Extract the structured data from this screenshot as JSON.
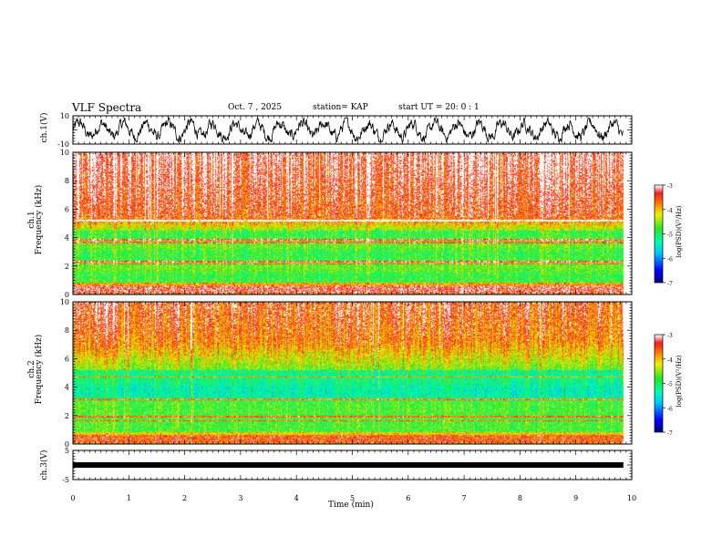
{
  "header": {
    "title": "VLF Spectra",
    "date": "Oct. 7 , 2025",
    "station": "station= KAP",
    "start": "start  UT =   20: 0  : 1"
  },
  "chart_data": [
    {
      "type": "line",
      "name": "ch1-waveform",
      "ylabel": "ch.1(V)",
      "ylim": [
        -10,
        10
      ],
      "y_ticks": [
        "10",
        "-10"
      ],
      "x_range_min": [
        0,
        9.85
      ]
    },
    {
      "type": "heatmap",
      "name": "ch1-spectrogram",
      "ylabel_line1": "ch.1",
      "ylabel_line2": "Frequency (kHz)",
      "ylim": [
        0,
        10
      ],
      "y_ticks": [
        "0",
        "2",
        "4",
        "6",
        "8",
        "10"
      ],
      "x_range_min": [
        0,
        9.85
      ],
      "colorbar": {
        "label": "log(PSD)(V²/Hz)",
        "range": [
          -7,
          -3
        ],
        "ticks": [
          "-3",
          "-4",
          "-5",
          "-6",
          "-7"
        ]
      }
    },
    {
      "type": "heatmap",
      "name": "ch2-spectrogram",
      "ylabel_line1": "ch.2",
      "ylabel_line2": "Frequency (kHz)",
      "ylim": [
        0,
        10
      ],
      "y_ticks": [
        "0",
        "2",
        "4",
        "6",
        "8",
        "10"
      ],
      "x_range_min": [
        0,
        9.85
      ],
      "colorbar": {
        "label": "log(PSD)(V²/Hz)",
        "range": [
          -7,
          -3
        ],
        "ticks": [
          "-3",
          "-4",
          "-5",
          "-6",
          "-7"
        ]
      }
    },
    {
      "type": "line",
      "name": "ch3-waveform",
      "ylabel": "ch.3(V)",
      "ylim": [
        -5,
        5
      ],
      "y_ticks": [
        "5",
        "-5"
      ],
      "level": 0,
      "x_range_min": [
        0,
        9.85
      ]
    }
  ],
  "xaxis": {
    "label": "Time (min)",
    "ticks": [
      "0",
      "1",
      "2",
      "3",
      "4",
      "5",
      "6",
      "7",
      "8",
      "9",
      "10"
    ],
    "range": [
      0,
      10
    ]
  },
  "colors": {
    "frame": "#000000",
    "waveform": "#000000"
  }
}
